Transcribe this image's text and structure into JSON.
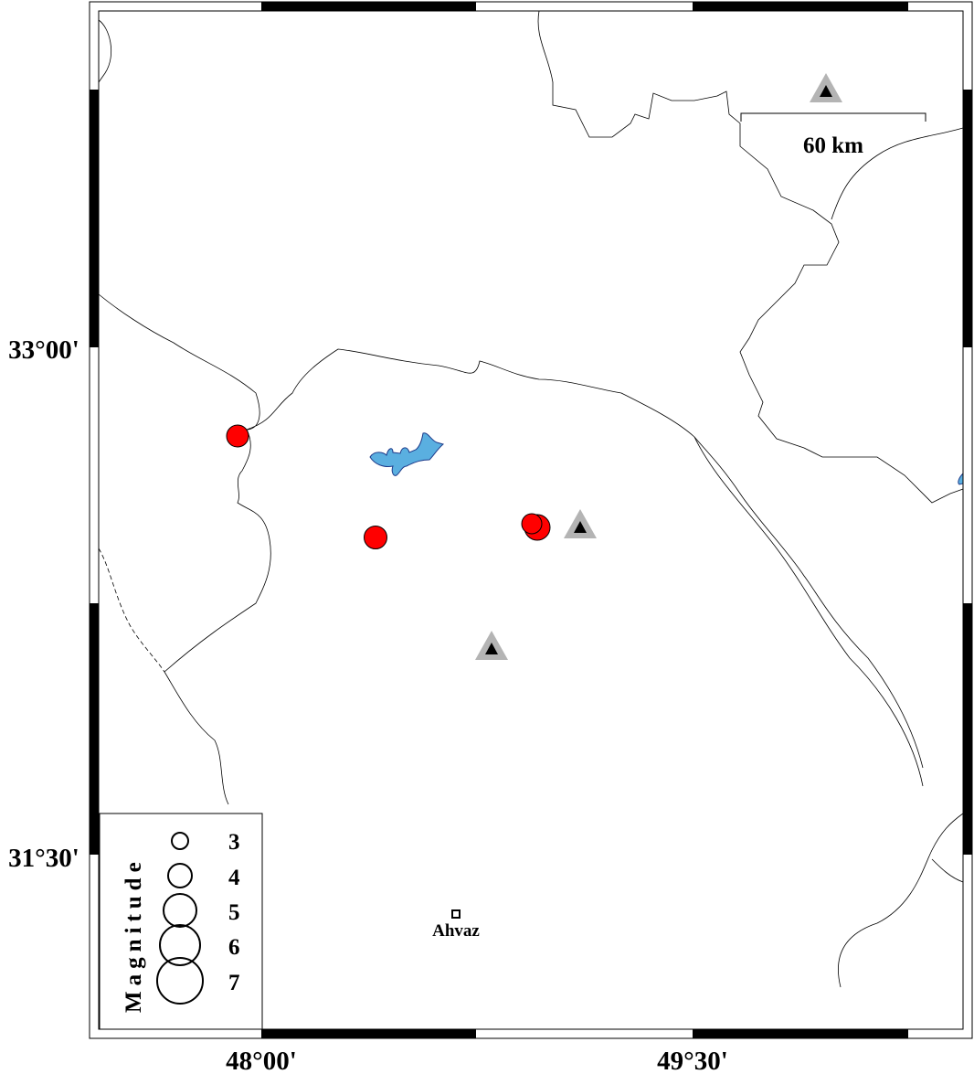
{
  "map": {
    "lat_labels": [
      "33°00'",
      "31°30'"
    ],
    "lon_labels": [
      "48°00'",
      "49°30'"
    ],
    "scale_bar": {
      "label": "60 km"
    },
    "city": {
      "name": "Ahvaz"
    },
    "legend": {
      "title": "Magnitude",
      "sizes": [
        "3",
        "4",
        "5",
        "6",
        "7"
      ]
    },
    "colors": {
      "event": "#ff0000",
      "lake": "#5aafe0",
      "station_outer": "#b4b4b4",
      "station_inner": "#000000"
    },
    "events": [
      "event",
      "event",
      "event",
      "event"
    ],
    "stations": [
      "station",
      "station",
      "station"
    ]
  }
}
